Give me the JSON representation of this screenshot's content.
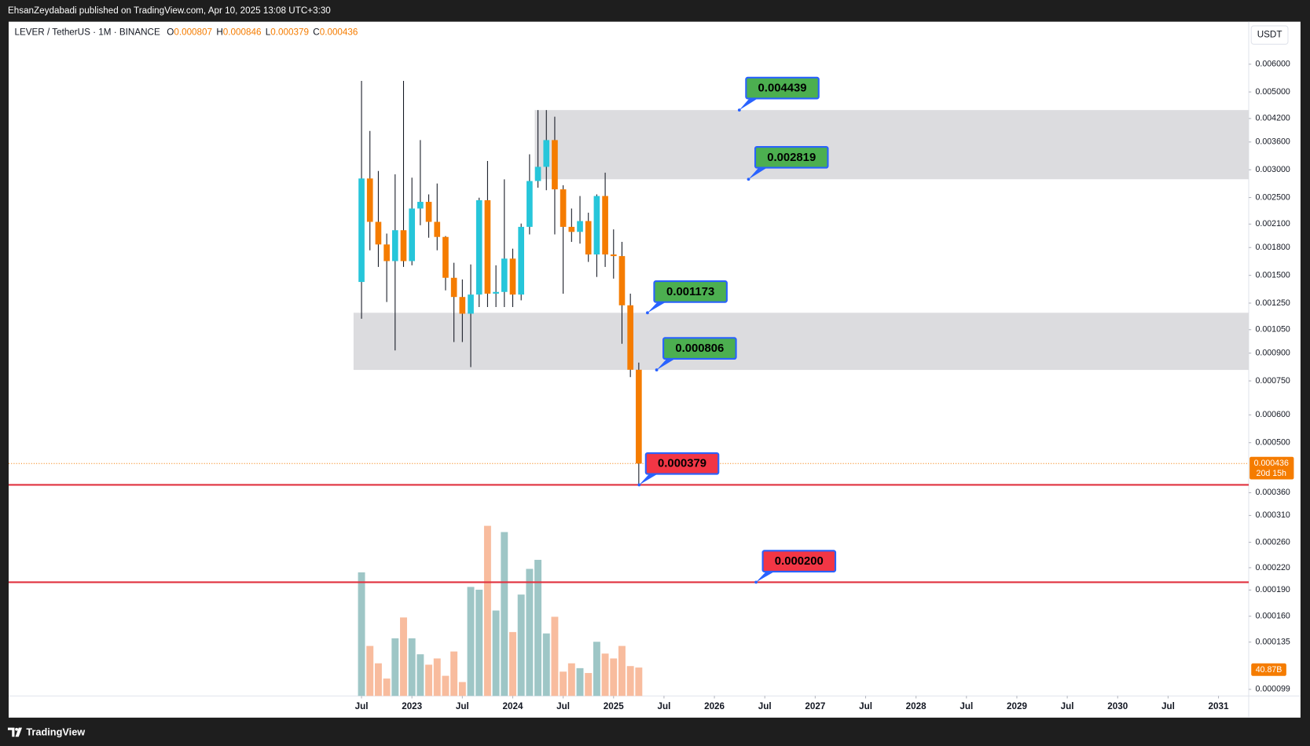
{
  "header": "EhsanZeydabadi published on TradingView.com, Apr 10, 2025 13:08 UTC+3:30",
  "footer": "TradingView",
  "chart_data": {
    "type": "candlestick",
    "title": "LEVER / TetherUS · 1M · BINANCE",
    "legend_keys": [
      "O",
      "H",
      "L",
      "C"
    ],
    "y_unit": "USDT",
    "log_scale": true,
    "up_color": "#26c6da",
    "down_color": "#f57c00",
    "open": [
      0.001436,
      0.002833,
      0.002131,
      0.001837,
      0.001647,
      0.002017,
      0.001647,
      0.002326,
      0.00243,
      0.002131,
      0.00193,
      0.001476,
      0.001301,
      0.001166,
      0.001322,
      0.002456,
      0.00133,
      0.001345,
      0.001674,
      0.001322,
      0.002062,
      0.002786,
      0.003058,
      0.003645,
      0.002638,
      0.002062,
      0.001995,
      0.002142,
      0.00172,
      0.002525,
      0.00172,
      0.001702,
      0.001232,
      0.000807
    ],
    "high": [
      0.005377,
      0.003871,
      0.002976,
      0.001973,
      0.002911,
      0.005377,
      0.002848,
      0.003645,
      0.002552,
      0.002741,
      0.001941,
      0.001629,
      0.00146,
      0.001611,
      0.002497,
      0.003178,
      0.001602,
      0.002817,
      0.001787,
      0.002107,
      0.00332,
      0.004439,
      0.004439,
      0.004249,
      0.002711,
      0.002326,
      0.002525,
      0.002263,
      0.002552,
      0.002943,
      0.002028,
      0.001868,
      0.00133,
      0.000846
    ],
    "low": [
      0.001128,
      0.001768,
      0.001585,
      0.001259,
      0.000916,
      0.001585,
      0.001602,
      0.002084,
      0.00192,
      0.001768,
      0.001359,
      0.000968,
      0.000968,
      0.000821,
      0.001218,
      0.001218,
      0.001218,
      0.001218,
      0.001218,
      0.001273,
      0.001962,
      0.002667,
      0.002623,
      0.001962,
      0.00133,
      0.001868,
      0.001847,
      0.001638,
      0.001484,
      0.001585,
      0.001468,
      0.000957,
      0.000769,
      0.000379
    ],
    "close": [
      0.002833,
      0.002131,
      0.001837,
      0.001647,
      0.002017,
      0.001647,
      0.002326,
      0.00243,
      0.002131,
      0.00193,
      0.001476,
      0.001301,
      0.001166,
      0.001322,
      0.002456,
      0.00133,
      0.001345,
      0.001674,
      0.001322,
      0.002062,
      0.002786,
      0.003058,
      0.003645,
      0.002638,
      0.002062,
      0.001995,
      0.002142,
      0.00172,
      0.002525,
      0.00172,
      0.001702,
      0.001232,
      0.000807,
      0.000436
    ],
    "ylim": [
      9.48e-05,
      0.00793
    ],
    "yticks": [
      {
        "value": 0.006,
        "label": "0.006000"
      },
      {
        "value": 0.005,
        "label": "0.005000"
      },
      {
        "value": 0.0042,
        "label": "0.004200"
      },
      {
        "value": 0.0036,
        "label": "0.003600"
      },
      {
        "value": 0.003,
        "label": "0.003000"
      },
      {
        "value": 0.0025,
        "label": "0.002500"
      },
      {
        "value": 0.0021,
        "label": "0.002100"
      },
      {
        "value": 0.0018,
        "label": "0.001800"
      },
      {
        "value": 0.0015,
        "label": "0.001500"
      },
      {
        "value": 0.00125,
        "label": "0.001250"
      },
      {
        "value": 0.00105,
        "label": "0.001050"
      },
      {
        "value": 0.0009,
        "label": "0.000900"
      },
      {
        "value": 0.00075,
        "label": "0.000750"
      },
      {
        "value": 0.0006,
        "label": "0.000600"
      },
      {
        "value": 0.0005,
        "label": "0.000500"
      },
      {
        "value": 0.00036,
        "label": "0.000360"
      },
      {
        "value": 0.00031,
        "label": "0.000310"
      },
      {
        "value": 0.00026,
        "label": "0.000260"
      },
      {
        "value": 0.00022,
        "label": "0.000220"
      },
      {
        "value": 0.00019,
        "label": "0.000190"
      },
      {
        "value": 0.00016,
        "label": "0.000160"
      },
      {
        "value": 0.000135,
        "label": "0.000135"
      },
      {
        "value": 9.9e-05,
        "label": "0.000099"
      }
    ],
    "xlim": [
      -42,
      105.6
    ],
    "xticks": [
      {
        "value": 0,
        "label": "Jul"
      },
      {
        "value": 6,
        "label": "2023"
      },
      {
        "value": 12,
        "label": "Jul"
      },
      {
        "value": 18,
        "label": "2024"
      },
      {
        "value": 24,
        "label": "Jul"
      },
      {
        "value": 30,
        "label": "2025"
      },
      {
        "value": 36,
        "label": "Jul"
      },
      {
        "value": 42,
        "label": "2026"
      },
      {
        "value": 48,
        "label": "Jul"
      },
      {
        "value": 54,
        "label": "2027"
      },
      {
        "value": 60,
        "label": "Jul"
      },
      {
        "value": 66,
        "label": "2028"
      },
      {
        "value": 72,
        "label": "Jul"
      },
      {
        "value": 78,
        "label": "2029"
      },
      {
        "value": 84,
        "label": "Jul"
      },
      {
        "value": 90,
        "label": "2030"
      },
      {
        "value": 96,
        "label": "Jul"
      },
      {
        "value": 102,
        "label": "2031"
      }
    ],
    "volume": {
      "values": [
        178,
        72,
        47,
        25,
        83,
        113,
        83,
        60,
        45,
        54,
        29,
        64,
        20,
        157,
        153,
        245,
        123,
        236,
        92,
        146,
        183,
        196,
        90,
        114,
        35,
        47,
        40,
        33,
        78,
        61,
        54,
        72,
        43,
        40.87
      ],
      "last_label": "40.87B",
      "ylim": [
        0,
        971
      ],
      "up_color": "#9ec6c6",
      "down_color": "#f8bc9e",
      "tag_color": "#f57c00"
    },
    "zones": [
      {
        "low": 0.002819,
        "high": 0.004439
      },
      {
        "low": 0.000806,
        "high": 0.001173
      }
    ],
    "zone_color": "#dcdcdf",
    "lines": [
      0.000379,
      {
        "value": 0.0002,
        "label": "0.000200"
      }
    ],
    "line_color": "#e0313f",
    "annotations": [
      {
        "value": 0.004439,
        "color": "#4caf50"
      },
      {
        "value": 0.002819,
        "color": "#4caf50"
      },
      {
        "value": 0.001173,
        "color": "#4caf50"
      },
      {
        "value": 0.000806,
        "color": "#4caf50"
      },
      {
        "value": 0.000379,
        "color": "#f23645"
      },
      {
        "value": {
          "value": 0.0002,
          "label": "0.000200"
        },
        "color": "#f23645"
      }
    ],
    "price_tag_countdown": "20d 15h"
  }
}
